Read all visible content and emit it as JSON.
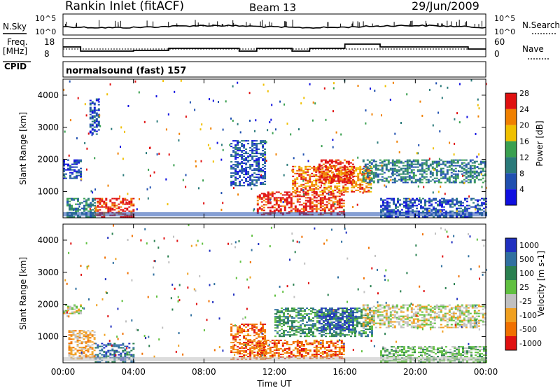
{
  "header": {
    "station": "Rankin Inlet (fitACF)",
    "beam": "Beam 13",
    "date": "29/Jun/2009"
  },
  "top_panels": {
    "nsky_label": "N.Sky",
    "nsearch_label": "N.Search",
    "freq_label_1": "Freq.",
    "freq_label_2": "[MHz]",
    "nave_label": "Nave",
    "cpid_label": "CPID",
    "noise_ticks_left": [
      "10^5",
      "10^0"
    ],
    "noise_ticks_right": [
      "10^5",
      "10^0"
    ],
    "freq_ticks": [
      "18",
      "8"
    ],
    "nave_ticks": [
      "60",
      "0"
    ],
    "cpid_text": "normalsound (fast) 157"
  },
  "chart_data": [
    {
      "type": "heatmap",
      "panel": "power",
      "ylabel": "Slant Range [km]",
      "xlabel": "",
      "ylim": [
        180,
        4500
      ],
      "yticks": [
        "1000",
        "2000",
        "3000",
        "4000"
      ],
      "colorbar_label": "Power [dB]",
      "colorbar_ticks": [
        "4",
        "8",
        "12",
        "16",
        "20",
        "24",
        "28"
      ],
      "colors": [
        "#1010e0",
        "#2050b0",
        "#2a7a7a",
        "#3aa050",
        "#f0c000",
        "#f08000",
        "#e01010"
      ],
      "regions": [
        {
          "t0": 0.0,
          "t1": 1.0,
          "r0": 1400,
          "r1": 2000,
          "level": 1
        },
        {
          "t0": 0.2,
          "t1": 1.8,
          "r0": 200,
          "r1": 800,
          "level": 2
        },
        {
          "t0": 1.8,
          "t1": 4.0,
          "r0": 200,
          "r1": 800,
          "level": 6
        },
        {
          "t0": 1.5,
          "t1": 2.0,
          "r0": 2800,
          "r1": 3900,
          "level": 1
        },
        {
          "t0": 9.5,
          "t1": 11.5,
          "r0": 1200,
          "r1": 2600,
          "level": 1
        },
        {
          "t0": 11.0,
          "t1": 16.0,
          "r0": 300,
          "r1": 1000,
          "level": 6
        },
        {
          "t0": 13.0,
          "t1": 17.5,
          "r0": 1000,
          "r1": 1800,
          "level": 5
        },
        {
          "t0": 14.5,
          "t1": 16.5,
          "r0": 1300,
          "r1": 2000,
          "level": 6
        },
        {
          "t0": 17.0,
          "t1": 24.0,
          "r0": 1300,
          "r1": 2000,
          "level": 2
        },
        {
          "t0": 18.0,
          "t1": 24.0,
          "r0": 200,
          "r1": 800,
          "level": 1
        }
      ]
    },
    {
      "type": "heatmap",
      "panel": "velocity",
      "ylabel": "Slant Range [km]",
      "xlabel": "Time UT",
      "ylim": [
        180,
        4500
      ],
      "yticks": [
        "1000",
        "2000",
        "3000",
        "4000"
      ],
      "xticks": [
        "00:00",
        "04:00",
        "08:00",
        "12:00",
        "16:00",
        "20:00",
        "00:00"
      ],
      "colorbar_label": "Velocity [m s-1]",
      "colorbar_ticks": [
        "1000",
        "500",
        "100",
        "25",
        "-25",
        "-100",
        "-500",
        "-1000"
      ],
      "colors": [
        "#2030c0",
        "#3070a0",
        "#2a8050",
        "#60c040",
        "#c0c0c0",
        "#f0a020",
        "#f07000",
        "#e01010"
      ],
      "regions": [
        {
          "t0": 0.0,
          "t1": 1.0,
          "r0": 1700,
          "r1": 2000,
          "level": 4
        },
        {
          "t0": 0.3,
          "t1": 1.8,
          "r0": 300,
          "r1": 1200,
          "level": 5
        },
        {
          "t0": 1.8,
          "t1": 4.0,
          "r0": 200,
          "r1": 800,
          "level": 1
        },
        {
          "t0": 9.5,
          "t1": 11.5,
          "r0": 300,
          "r1": 1400,
          "level": 6
        },
        {
          "t0": 11.0,
          "t1": 16.0,
          "r0": 300,
          "r1": 900,
          "level": 6
        },
        {
          "t0": 12.0,
          "t1": 17.5,
          "r0": 1000,
          "r1": 1900,
          "level": 2
        },
        {
          "t0": 14.5,
          "t1": 16.5,
          "r0": 1200,
          "r1": 1900,
          "level": 0
        },
        {
          "t0": 17.0,
          "t1": 24.0,
          "r0": 1300,
          "r1": 2000,
          "level": 4
        },
        {
          "t0": 18.0,
          "t1": 24.0,
          "r0": 200,
          "r1": 700,
          "level": 3
        }
      ]
    }
  ]
}
